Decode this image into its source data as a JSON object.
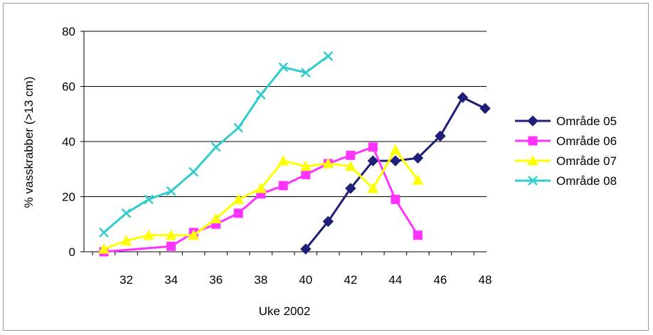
{
  "chart_data": {
    "type": "line",
    "title": "",
    "xlabel": "Uke 2002",
    "ylabel": "% vasskrabber (>13 cm)",
    "xlim": [
      30.5,
      48
    ],
    "ylim": [
      0,
      80
    ],
    "x_ticks": [
      "32",
      "34",
      "36",
      "38",
      "40",
      "42",
      "44",
      "46",
      "48"
    ],
    "y_ticks": [
      "0",
      "20",
      "40",
      "60",
      "80"
    ],
    "grid": "horizontal",
    "legend_position": "right",
    "series": [
      {
        "name": "Område 05",
        "color": "#1f1f7a",
        "marker": "diamond",
        "points": [
          [
            40,
            1
          ],
          [
            41,
            11
          ],
          [
            42,
            23
          ],
          [
            43,
            33
          ],
          [
            44,
            33
          ],
          [
            45,
            34
          ],
          [
            46,
            42
          ],
          [
            47,
            56
          ],
          [
            48,
            52
          ]
        ]
      },
      {
        "name": "Område 06",
        "color": "#ff33ff",
        "marker": "square",
        "points": [
          [
            31,
            0
          ],
          [
            34,
            2
          ],
          [
            35,
            7
          ],
          [
            36,
            10
          ],
          [
            37,
            14
          ],
          [
            38,
            21
          ],
          [
            39,
            24
          ],
          [
            40,
            28
          ],
          [
            41,
            32
          ],
          [
            42,
            35
          ],
          [
            43,
            38
          ],
          [
            44,
            19
          ],
          [
            45,
            6
          ]
        ]
      },
      {
        "name": "Område 07",
        "color": "#ffff00",
        "marker": "triangle",
        "points": [
          [
            31,
            1
          ],
          [
            32,
            4
          ],
          [
            33,
            6
          ],
          [
            34,
            6
          ],
          [
            35,
            6
          ],
          [
            36,
            12
          ],
          [
            37,
            19
          ],
          [
            38,
            23
          ],
          [
            39,
            33
          ],
          [
            40,
            31
          ],
          [
            41,
            32
          ],
          [
            42,
            31
          ],
          [
            43,
            23
          ],
          [
            44,
            37
          ],
          [
            45,
            26
          ]
        ]
      },
      {
        "name": "Område 08",
        "color": "#33cccc",
        "marker": "x",
        "points": [
          [
            31,
            7
          ],
          [
            32,
            14
          ],
          [
            33,
            19
          ],
          [
            34,
            22
          ],
          [
            35,
            29
          ],
          [
            36,
            38
          ],
          [
            37,
            45
          ],
          [
            38,
            57
          ],
          [
            39,
            67
          ],
          [
            40,
            65
          ],
          [
            41,
            71
          ]
        ]
      }
    ]
  }
}
